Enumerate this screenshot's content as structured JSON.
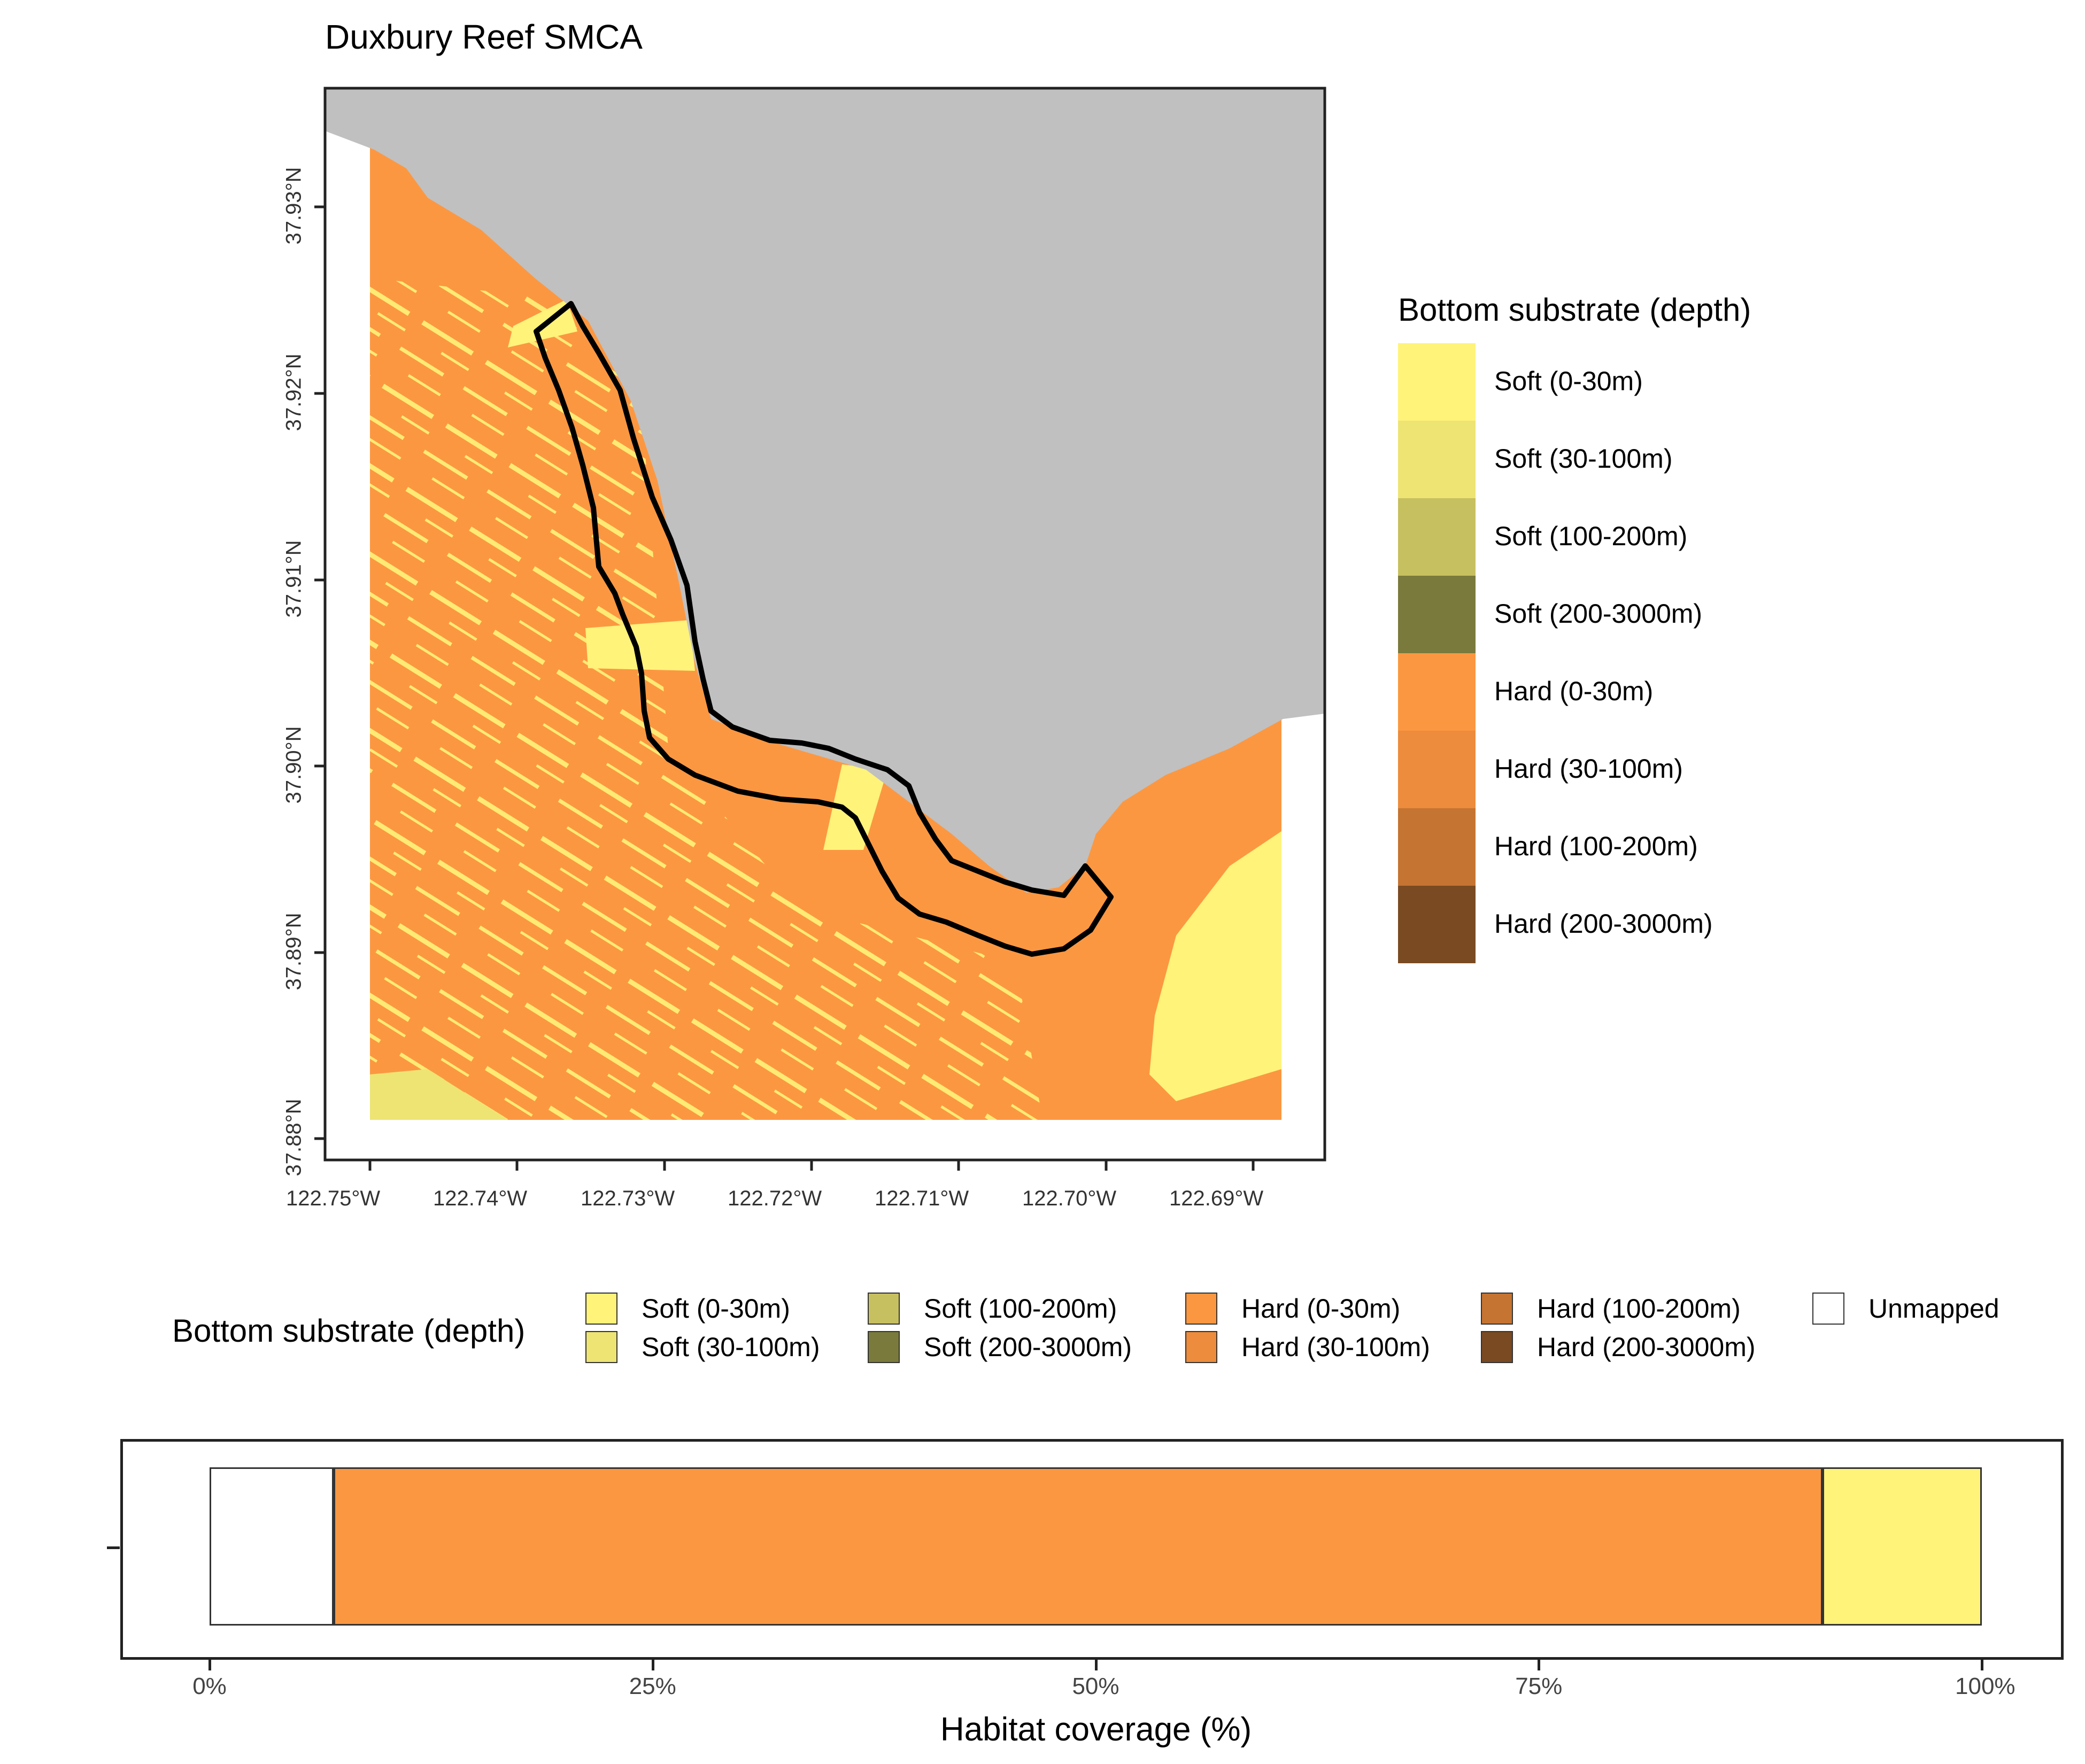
{
  "map": {
    "title": "Duxbury Reef SMCA",
    "y_ticks": [
      "37.93°N",
      "37.92°N",
      "37.91°N",
      "37.90°N",
      "37.89°N",
      "37.88°N"
    ],
    "x_ticks": [
      "122.75°W",
      "122.74°W",
      "122.73°W",
      "122.72°W",
      "122.71°W",
      "122.70°W",
      "122.69°W"
    ]
  },
  "legend_right": {
    "title": "Bottom substrate (depth)",
    "items": [
      {
        "label": "Soft (0-30m)",
        "color": "#FFF37A"
      },
      {
        "label": "Soft (30-100m)",
        "color": "#EDE474"
      },
      {
        "label": "Soft (100-200m)",
        "color": "#C7C060"
      },
      {
        "label": "Soft (200-3000m)",
        "color": "#7A7A3C"
      },
      {
        "label": "Hard (0-30m)",
        "color": "#FC9741"
      },
      {
        "label": "Hard (30-100m)",
        "color": "#EC8C3C"
      },
      {
        "label": "Hard (100-200m)",
        "color": "#C67432"
      },
      {
        "label": "Hard (200-3000m)",
        "color": "#7A4A22"
      }
    ]
  },
  "legend_bottom": {
    "title": "Bottom substrate (depth)",
    "items": [
      {
        "label": "Soft (0-30m)",
        "color": "#FFF37A"
      },
      {
        "label": "Soft (30-100m)",
        "color": "#EDE474"
      },
      {
        "label": "Soft (100-200m)",
        "color": "#C7C060"
      },
      {
        "label": "Soft (200-3000m)",
        "color": "#7A7A3C"
      },
      {
        "label": "Hard (0-30m)",
        "color": "#FC9741"
      },
      {
        "label": "Hard (30-100m)",
        "color": "#EC8C3C"
      },
      {
        "label": "Hard (100-200m)",
        "color": "#C67432"
      },
      {
        "label": "Hard (200-3000m)",
        "color": "#7A4A22"
      },
      {
        "label": "Unmapped",
        "color": "#FFFFFF"
      }
    ]
  },
  "chart_data": {
    "type": "bar",
    "orientation": "horizontal",
    "stacked": true,
    "xlabel": "Habitat coverage (%)",
    "x_ticks": [
      "0%",
      "25%",
      "50%",
      "75%",
      "100%"
    ],
    "xlim": [
      0,
      100
    ],
    "series": [
      {
        "name": "Unmapped",
        "value": 7,
        "color": "#FFFFFF"
      },
      {
        "name": "Hard (0-30m)",
        "value": 84,
        "color": "#FC9741"
      },
      {
        "name": "Soft (0-30m)",
        "value": 9,
        "color": "#FFF37A"
      }
    ]
  }
}
